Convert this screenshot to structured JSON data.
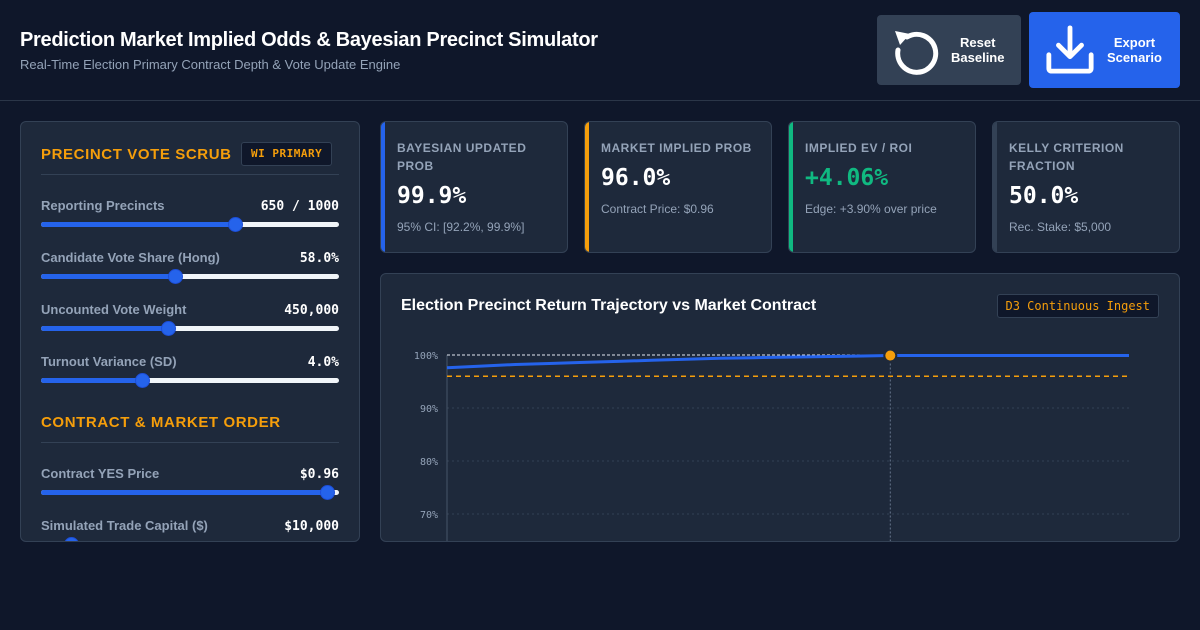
{
  "header": {
    "title": "Prediction Market Implied Odds & Bayesian Precinct Simulator",
    "subtitle": "Real-Time Election Primary Contract Depth & Vote Update Engine",
    "reset_button": {
      "label": "Reset\nBaseline",
      "icon": "reset-icon"
    },
    "export_button": {
      "label": "Export\nScenario",
      "icon": "download-icon"
    }
  },
  "scrub": {
    "title": "PRECINCT VOTE SCRUB",
    "tag": "WI PRIMARY",
    "sliders": [
      {
        "label": "Reporting Precincts",
        "value": "650 / 1000",
        "fraction": 0.65
      },
      {
        "label": "Candidate Vote Share (Hong)",
        "value": "58.0%",
        "fraction": 0.45
      },
      {
        "label": "Uncounted Vote Weight",
        "value": "450,000",
        "fraction": 0.425
      },
      {
        "label": "Turnout Variance (SD)",
        "value": "4.0%",
        "fraction": 0.34
      }
    ]
  },
  "contract": {
    "title": "CONTRACT & MARKET ORDER",
    "sliders": [
      {
        "label": "Contract YES Price",
        "value": "$0.96",
        "fraction": 0.96
      },
      {
        "label": "Simulated Trade Capital ($)",
        "value": "$10,000",
        "fraction": 0.1
      }
    ]
  },
  "kpis": [
    {
      "label": "BAYESIAN UPDATED PROB",
      "value": "99.9%",
      "sub": "95% CI: [92.2%, 99.9%]",
      "accent": "#2563eb",
      "value_color": "#ffffff"
    },
    {
      "label": "MARKET IMPLIED PROB",
      "value": "96.0%",
      "sub": "Contract Price: $0.96",
      "accent": "#f59e0b",
      "value_color": "#ffffff"
    },
    {
      "label": "IMPLIED EV / ROI",
      "value": "+4.06%",
      "sub": "Edge: +3.90% over price",
      "accent": "#10b981",
      "value_color": "#10b981"
    },
    {
      "label": "KELLY CRITERION FRACTION",
      "value": "50.0%",
      "sub": "Rec. Stake: $5,000",
      "accent": "#334155",
      "value_color": "#ffffff"
    }
  ],
  "chart": {
    "title": "Election Precinct Return Trajectory vs Market Contract",
    "tag": "D3 Continuous Ingest"
  },
  "chart_data": {
    "type": "line",
    "x": [
      0,
      50,
      100,
      150,
      200,
      250,
      300,
      350,
      400,
      450,
      500,
      550,
      600,
      650,
      700,
      750,
      800,
      850,
      900,
      950,
      1000
    ],
    "series": [
      {
        "values": [
          97.6,
          97.9,
          98.2,
          98.4,
          98.6,
          98.8,
          99.0,
          99.2,
          99.4,
          99.5,
          99.6,
          99.7,
          99.8,
          99.9,
          99.9,
          99.9,
          99.9,
          99.9,
          99.9,
          99.9,
          99.9
        ],
        "color": "#2563eb"
      },
      {
        "values": [
          96,
          96,
          96,
          96,
          96,
          96,
          96,
          96,
          96,
          96,
          96,
          96,
          96,
          96,
          96,
          96,
          96,
          96,
          96,
          96,
          96
        ],
        "color": "#f59e0b",
        "style": "dashed"
      }
    ],
    "reference_line": 100,
    "marker_x": 650,
    "marker_value": 99.9,
    "xlim": [
      0,
      1000
    ],
    "ylim": [
      66,
      100
    ],
    "y_ticks": [
      100,
      90,
      80,
      70
    ],
    "y_tick_labels": [
      "100%",
      "90%",
      "80%",
      "70%"
    ],
    "grid": true
  }
}
